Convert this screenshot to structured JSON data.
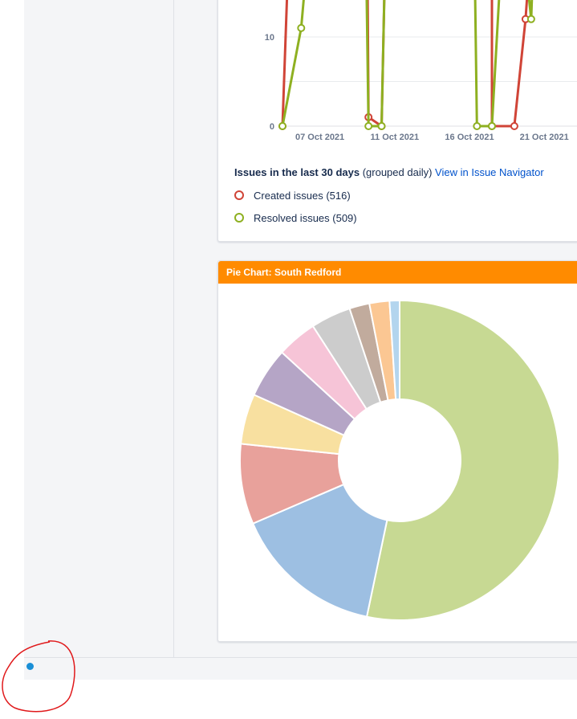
{
  "line_gadget": {
    "summary_title": "Issues in the last 30 days",
    "summary_grouping": "(grouped daily)",
    "navigator_link": "View in Issue Navigator",
    "legend": [
      {
        "label": "Created issues (516)",
        "color": "#d04437"
      },
      {
        "label": "Resolved issues (509)",
        "color": "#8eb021"
      }
    ]
  },
  "pie_gadget": {
    "title": "Pie Chart: South Redford"
  },
  "chart_data": [
    {
      "type": "line",
      "x_ticks": [
        "07 Oct 2021",
        "11 Oct 2021",
        "16 Oct 2021",
        "21 Oct 2021"
      ],
      "y_ticks": [
        "0",
        "10"
      ],
      "grid": true,
      "series": [
        {
          "name": "Created issues",
          "color": "#d04437",
          "points": [
            [
              0,
              0
            ],
            [
              0.5,
              30
            ],
            [
              4.5,
              30
            ],
            [
              4.6,
              1
            ],
            [
              5.3,
              0
            ],
            [
              5.6,
              30
            ],
            [
              11.2,
              30
            ],
            [
              11.2,
              0
            ],
            [
              12.4,
              0
            ],
            [
              13.0,
              12
            ],
            [
              13.6,
              30
            ]
          ]
        },
        {
          "name": "Resolved issues",
          "color": "#8eb021",
          "points": [
            [
              0,
              0
            ],
            [
              1,
              11
            ],
            [
              1.8,
              30
            ],
            [
              4.4,
              30
            ],
            [
              4.6,
              0
            ],
            [
              5.3,
              0
            ],
            [
              5.6,
              30
            ],
            [
              10.2,
              30
            ],
            [
              10.4,
              0
            ],
            [
              11.2,
              0
            ],
            [
              12.0,
              30
            ],
            [
              12.4,
              30
            ],
            [
              13.3,
              12
            ],
            [
              13.6,
              30
            ]
          ]
        }
      ]
    },
    {
      "type": "pie",
      "title": "Pie Chart: South Redford",
      "values": [
        52.5,
        15,
        8,
        5,
        5,
        4,
        4,
        2,
        2,
        1
      ],
      "colors": [
        "#c7d993",
        "#9dbfe2",
        "#e8a19b",
        "#f8e0a0",
        "#b5a5c6",
        "#f6c4d7",
        "#cccccc",
        "#c1ab9d",
        "#fbc793",
        "#b3d5ee"
      ]
    }
  ]
}
